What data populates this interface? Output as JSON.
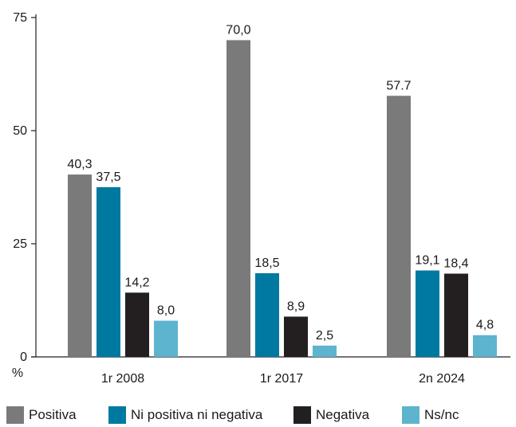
{
  "chart_data": {
    "type": "bar",
    "categories": [
      "1r 2008",
      "1r 2017",
      "2n 2024"
    ],
    "series": [
      {
        "name": "Positiva",
        "values": [
          40.3,
          70.0,
          57.7
        ],
        "labels": [
          "40,3",
          "70,0",
          "57.7"
        ],
        "color": "#7b7a7b"
      },
      {
        "name": "Ni positiva ni negativa",
        "values": [
          37.5,
          18.5,
          19.1
        ],
        "labels": [
          "37,5",
          "18,5",
          "19,1"
        ],
        "color": "#0079a1"
      },
      {
        "name": "Negativa",
        "values": [
          14.2,
          8.9,
          18.4
        ],
        "labels": [
          "14,2",
          "8,9",
          "18,4"
        ],
        "color": "#231f20"
      },
      {
        "name": "Ns/nc",
        "values": [
          8.0,
          2.5,
          4.8
        ],
        "labels": [
          "8,0",
          "2,5",
          "4,8"
        ],
        "color": "#5db4cf"
      }
    ],
    "ylim": [
      0,
      75
    ],
    "yticks": [
      0,
      25,
      50,
      75
    ],
    "ylabel": "%",
    "xlabel": "",
    "title": "",
    "grid": false,
    "legend_position": "bottom"
  }
}
